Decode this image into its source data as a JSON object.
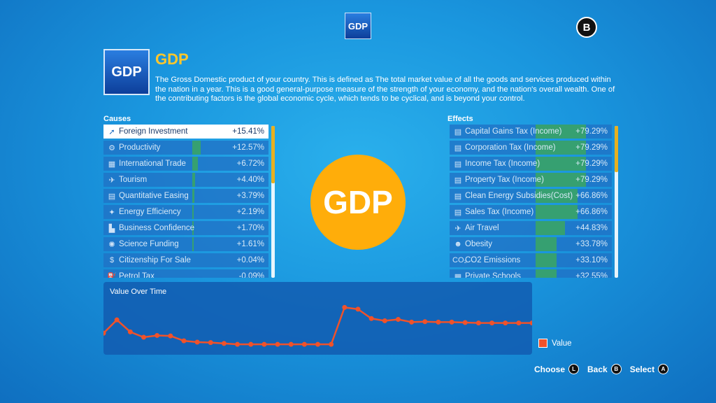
{
  "header": {
    "top_icon_label": "GDP",
    "close_button_label": "B"
  },
  "detail": {
    "icon_label": "GDP",
    "title": "GDP",
    "description": "The Gross Domestic product of your country. This is defined as The total market value of all the goods and services produced within the nation in a year. This is a good general-purpose measure of the strength of your economy, and the nation's overall wealth. One of the contributing factors is the global economic cycle, which tends to be cyclical, and is beyond your control.",
    "center_label": "GDP"
  },
  "causes": {
    "label": "Causes",
    "items": [
      {
        "icon": "investment-icon",
        "glyph": "➚",
        "label": "Foreign Investment",
        "value": "+15.41%",
        "level": 0,
        "selected": true
      },
      {
        "icon": "productivity-icon",
        "glyph": "⚙",
        "label": "Productivity",
        "value": "+12.57%",
        "level": 0.05,
        "selected": false
      },
      {
        "icon": "trade-icon",
        "glyph": "▦",
        "label": "International Trade",
        "value": "+6.72%",
        "level": 0.03,
        "selected": false
      },
      {
        "icon": "tourism-icon",
        "glyph": "✈",
        "label": "Tourism",
        "value": "+4.40%",
        "level": 0.015,
        "selected": false
      },
      {
        "icon": "quantitative-easing-icon",
        "glyph": "▤",
        "label": "Quantitative Easing",
        "value": "+3.79%",
        "level": 0.012,
        "selected": false
      },
      {
        "icon": "energy-efficiency-icon",
        "glyph": "✦",
        "label": "Energy Efficiency",
        "value": "+2.19%",
        "level": 0.008,
        "selected": false
      },
      {
        "icon": "business-confidence-icon",
        "glyph": "▙",
        "label": "Business Confidence",
        "value": "+1.70%",
        "level": 0.006,
        "selected": false
      },
      {
        "icon": "science-funding-icon",
        "glyph": "✺",
        "label": "Science Funding",
        "value": "+1.61%",
        "level": 0.005,
        "selected": false
      },
      {
        "icon": "citizenship-icon",
        "glyph": "$",
        "label": "Citizenship For Sale",
        "value": "+0.04%",
        "level": 0,
        "selected": false
      },
      {
        "icon": "petrol-tax-icon",
        "glyph": "⛽",
        "label": "Petrol Tax",
        "value": "-0.09%",
        "level": 0,
        "selected": false
      }
    ]
  },
  "effects": {
    "label": "Effects",
    "items": [
      {
        "icon": "tax-icon",
        "glyph": "▤",
        "label": "Capital Gains Tax (Income)",
        "value": "+79.29%",
        "level": 0.31
      },
      {
        "icon": "tax-icon",
        "glyph": "▤",
        "label": "Corporation Tax (Income)",
        "value": "+79.29%",
        "level": 0.31
      },
      {
        "icon": "tax-icon",
        "glyph": "▤",
        "label": "Income Tax (Income)",
        "value": "+79.29%",
        "level": 0.31
      },
      {
        "icon": "tax-icon",
        "glyph": "▤",
        "label": "Property Tax (Income)",
        "value": "+79.29%",
        "level": 0.31
      },
      {
        "icon": "tax-icon",
        "glyph": "▤",
        "label": "Clean Energy Subsidies(Cost)",
        "value": "+66.86%",
        "level": 0.26
      },
      {
        "icon": "tax-icon",
        "glyph": "▤",
        "label": "Sales Tax (Income)",
        "value": "+66.86%",
        "level": 0.26
      },
      {
        "icon": "air-travel-icon",
        "glyph": "✈",
        "label": "Air Travel",
        "value": "+44.83%",
        "level": 0.18
      },
      {
        "icon": "obesity-icon",
        "glyph": "☻",
        "label": "Obesity",
        "value": "+33.78%",
        "level": 0.13
      },
      {
        "icon": "co2-icon",
        "glyph": "CO₂",
        "label": "CO2 Emissions",
        "value": "+33.10%",
        "level": 0.13
      },
      {
        "icon": "private-schools-icon",
        "glyph": "▦",
        "label": "Private Schools",
        "value": "+32.55%",
        "level": 0.13
      }
    ]
  },
  "chart": {
    "title": "Value Over Time",
    "legend": "Value",
    "color": "#f0522a"
  },
  "chart_data": {
    "type": "line",
    "series": [
      {
        "name": "Value",
        "values": [
          0.42,
          0.72,
          0.45,
          0.33,
          0.37,
          0.36,
          0.25,
          0.22,
          0.21,
          0.19,
          0.17,
          0.17,
          0.17,
          0.17,
          0.17,
          0.17,
          0.17,
          0.17,
          1.0,
          0.96,
          0.75,
          0.7,
          0.73,
          0.67,
          0.68,
          0.67,
          0.67,
          0.66,
          0.65,
          0.65,
          0.65,
          0.65,
          0.65
        ]
      }
    ],
    "ylim": [
      0,
      1.1
    ]
  },
  "prompts": [
    {
      "label": "Choose",
      "button": "L"
    },
    {
      "label": "Back",
      "button": "B"
    },
    {
      "label": "Select",
      "button": "A"
    }
  ]
}
